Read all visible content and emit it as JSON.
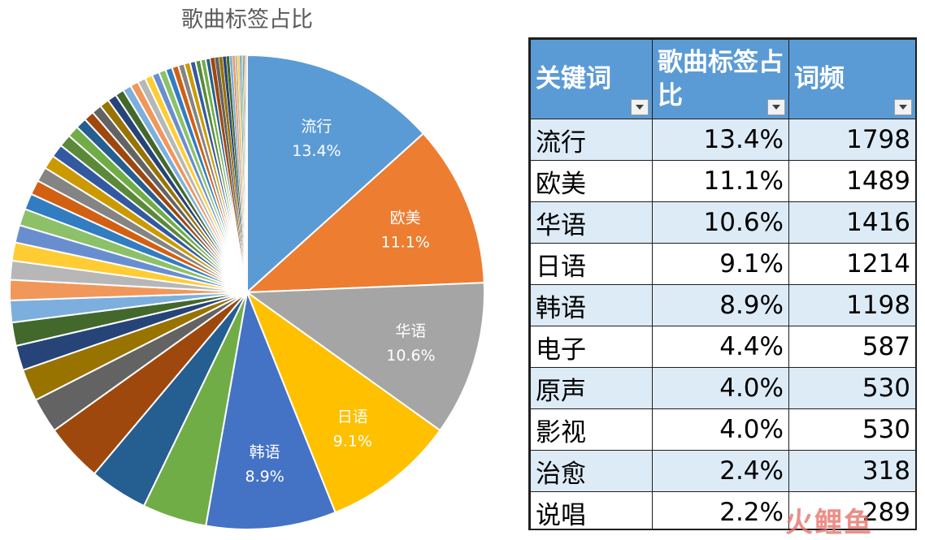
{
  "chart_data": {
    "type": "pie",
    "title": "歌曲标签占比",
    "labeled_slices": [
      {
        "label": "流行",
        "value": 13.4,
        "display": "13.4%",
        "color": "#5b9bd5"
      },
      {
        "label": "欧美",
        "value": 11.1,
        "display": "11.1%",
        "color": "#ed7d31"
      },
      {
        "label": "华语",
        "value": 10.6,
        "display": "10.6%",
        "color": "#a5a5a5"
      },
      {
        "label": "日语",
        "value": 9.1,
        "display": "9.1%",
        "color": "#ffc000"
      },
      {
        "label": "韩语",
        "value": 8.9,
        "display": "8.9%",
        "color": "#4472c4"
      }
    ],
    "unlabeled_slices": [
      4.4,
      4.0,
      4.0,
      2.4,
      2.2,
      1.7,
      1.6,
      1.5,
      1.4,
      1.3,
      1.25,
      1.2,
      1.15,
      1.1,
      1.0,
      1.0,
      0.95,
      0.9,
      0.85,
      0.8,
      0.75,
      0.7,
      0.68,
      0.65,
      0.62,
      0.6,
      0.58,
      0.56,
      0.54,
      0.52,
      0.5,
      0.48,
      0.46,
      0.44,
      0.42,
      0.4,
      0.38,
      0.36,
      0.34,
      0.32,
      0.3,
      0.28,
      0.26,
      0.24,
      0.22,
      0.2,
      0.18,
      0.16,
      0.14,
      0.12,
      0.1,
      0.08,
      0.07,
      0.06,
      0.05,
      0.04
    ],
    "unlabeled_palette": [
      "#70ad47",
      "#255e91",
      "#9e480e",
      "#636363",
      "#997300",
      "#264478",
      "#43682b",
      "#7cafdd",
      "#f1975a",
      "#b7b7b7",
      "#ffcd33",
      "#698ed0",
      "#8cc168",
      "#327dc2",
      "#d26012",
      "#848484",
      "#cc9a00",
      "#335aa1",
      "#5a8a39"
    ],
    "legend": "none"
  },
  "table": {
    "headers": [
      "关键词",
      "歌曲标签占比",
      "词频"
    ],
    "rows": [
      [
        "流行",
        "13.4%",
        "1798"
      ],
      [
        "欧美",
        "11.1%",
        "1489"
      ],
      [
        "华语",
        "10.6%",
        "1416"
      ],
      [
        "日语",
        "9.1%",
        "1214"
      ],
      [
        "韩语",
        "8.9%",
        "1198"
      ],
      [
        "电子",
        "4.4%",
        "587"
      ],
      [
        "原声",
        "4.0%",
        "530"
      ],
      [
        "影视",
        "4.0%",
        "530"
      ],
      [
        "治愈",
        "2.4%",
        "318"
      ],
      [
        "说唱",
        "2.2%",
        "289"
      ]
    ],
    "header_color": "#5b9bd5",
    "band_color": "#ddebf7"
  },
  "watermark": {
    "text": "火鲤鱼"
  }
}
